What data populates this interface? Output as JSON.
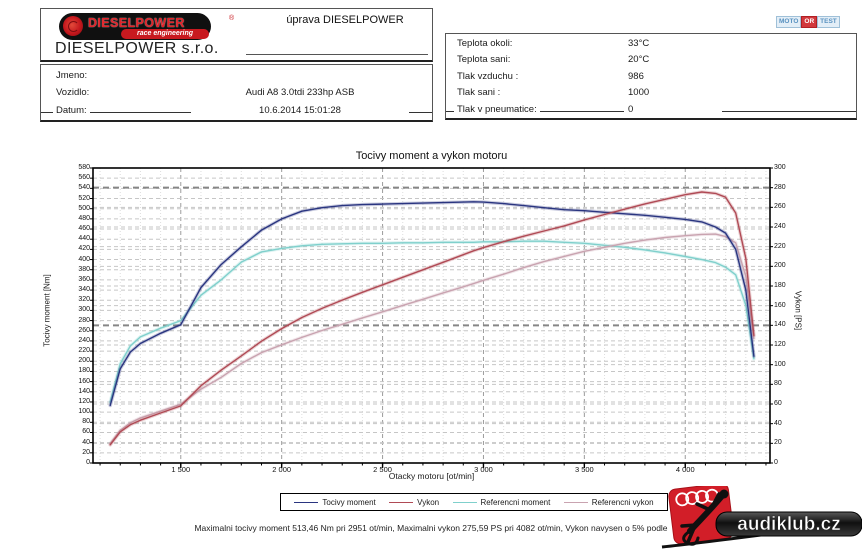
{
  "header": {
    "logo": {
      "brand": "DIESELPOWER",
      "sub": "race engineering",
      "tm": "®"
    },
    "company": "DIESELPOWER s.r.o.",
    "tuning_note": "úprava DIESELPOWER",
    "badge": {
      "left": "MOTO",
      "mid": "OR",
      "right": "TEST"
    },
    "info_left": {
      "rows": [
        {
          "label": "Jmeno:",
          "value": ""
        },
        {
          "label": "Vozidlo:",
          "value": "Audi A8 3.0tdi 233hp ASB"
        },
        {
          "label": "Datum:",
          "value": "10.6.2014 15:01:28"
        }
      ]
    },
    "info_right": {
      "rows": [
        {
          "label": "Teplota okoli:",
          "value": "33°C"
        },
        {
          "label": "Teplota sani:",
          "value": "20°C"
        },
        {
          "label": "Tlak vzduchu :",
          "value": "986"
        },
        {
          "label": "Tlak sani :",
          "value": "1000"
        },
        {
          "label": "Tlak v pneumatice:",
          "value": "0"
        }
      ]
    }
  },
  "chart_data": {
    "type": "line",
    "title": "Tocivy moment a vykon motoru",
    "xlabel": "Otacky motoru [ot/min]",
    "ylabel_left": "Tocivy moment [Nm]",
    "ylabel_right": "Vykon [PS]",
    "xlim": [
      1065,
      4420
    ],
    "ylim_left": [
      0,
      580
    ],
    "ylim_right": [
      0,
      300
    ],
    "y_left_step": 20,
    "y_right_step": 20,
    "bold_right_lines": [
      140,
      280
    ],
    "x_major_ticks": [
      1500,
      2000,
      2500,
      3000,
      3500,
      4000
    ],
    "x_tick_labels": [
      "1 500",
      "2 000",
      "2 500",
      "3 000",
      "3 500",
      "4 000"
    ],
    "x_minor_step": 100,
    "grid": true,
    "legend_position": "bottom",
    "x": [
      1150,
      1200,
      1250,
      1300,
      1400,
      1500,
      1600,
      1700,
      1800,
      1900,
      2000,
      2100,
      2200,
      2300,
      2400,
      2500,
      2600,
      2700,
      2800,
      2900,
      2951,
      3000,
      3100,
      3200,
      3300,
      3400,
      3500,
      3600,
      3700,
      3800,
      3900,
      4000,
      4082,
      4150,
      4200,
      4250,
      4300,
      4340
    ],
    "series": [
      {
        "name": "Tocivy moment",
        "axis": "left",
        "color": "#2a3580",
        "values": [
          113,
          185,
          218,
          235,
          255,
          272,
          345,
          390,
          425,
          458,
          480,
          495,
          502,
          506,
          508,
          509,
          510,
          511,
          512,
          513,
          513.5,
          513,
          510,
          506,
          502,
          498,
          496,
          493,
          490,
          487,
          483,
          479,
          474,
          464,
          452,
          420,
          340,
          210
        ]
      },
      {
        "name": "Vykon",
        "axis": "right",
        "color": "#b04a55",
        "values": [
          18.5,
          31.6,
          38.8,
          43.5,
          50.8,
          58.1,
          78.6,
          94.4,
          108.9,
          123.9,
          136.7,
          148.0,
          157.2,
          165.7,
          173.6,
          181.2,
          188.8,
          196.5,
          204.1,
          211.8,
          215.8,
          219.1,
          225.1,
          230.6,
          235.9,
          241.1,
          247.2,
          252.7,
          258.1,
          263.5,
          268.2,
          272.8,
          275.6,
          274.2,
          270.3,
          254.2,
          208.2,
          129.8
        ]
      },
      {
        "name": "Referencni moment",
        "axis": "left",
        "color": "#7fd0cc",
        "values": [
          120,
          195,
          230,
          248,
          265,
          280,
          330,
          360,
          395,
          415,
          422,
          427,
          430,
          431,
          432,
          432,
          433,
          433,
          434,
          434,
          434,
          435,
          435,
          436,
          436,
          434,
          432,
          428,
          424,
          419,
          413,
          406,
          400,
          394,
          385,
          370,
          310,
          205
        ]
      },
      {
        "name": "Referencni vykon",
        "axis": "right",
        "color": "#c9a3b0",
        "values": [
          19.6,
          33.3,
          40.9,
          45.9,
          52.8,
          59.8,
          75.2,
          87.1,
          101.2,
          112.3,
          120.2,
          127.7,
          134.7,
          141.1,
          147.6,
          153.8,
          160.3,
          166.5,
          173.0,
          179.2,
          182.4,
          185.8,
          192.0,
          198.7,
          204.8,
          210.1,
          215.3,
          219.4,
          223.4,
          226.7,
          229.3,
          231.2,
          232.5,
          232.8,
          230.2,
          223.9,
          189.8,
          126.7
        ]
      }
    ],
    "annotations": {
      "max_torque": "513,46 Nm pri 2951 ot/min",
      "max_power": "275,59 PS pri 4082 ot/min"
    }
  },
  "footer": {
    "summary": "Maximalni tocivy moment 513,46 Nm pri 2951 ot/min,  Maximalni vykon 275,59 PS pri 4082 ot/min,  Vykon navysen o 5% podle",
    "watermark": "audiklub.cz"
  }
}
